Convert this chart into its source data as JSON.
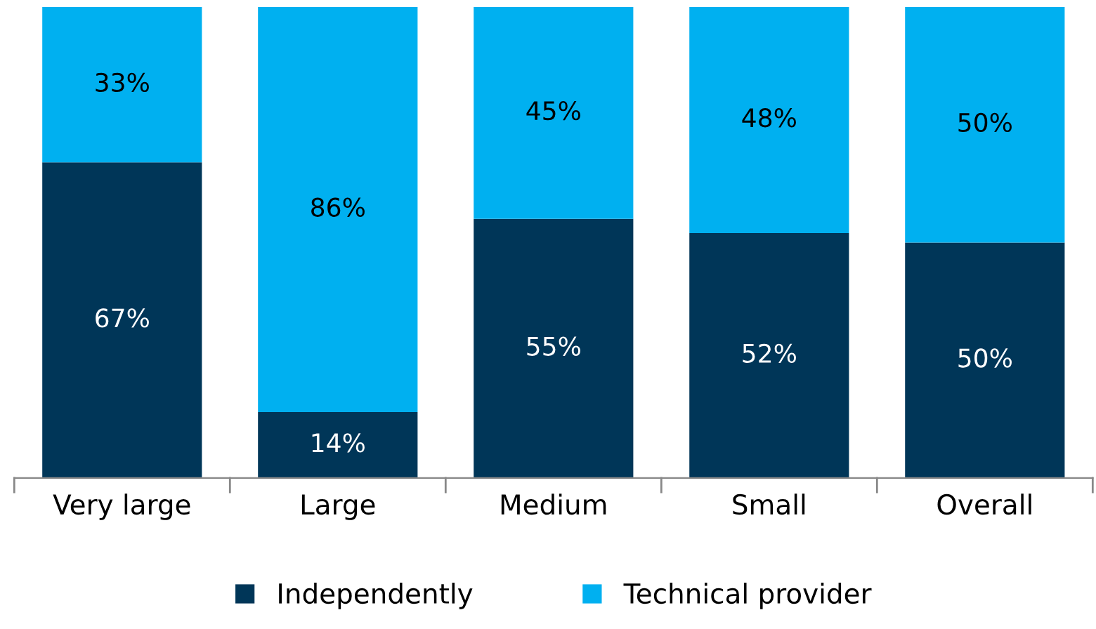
{
  "chart_data": {
    "type": "bar",
    "stacked": true,
    "categories": [
      "Very large",
      "Large",
      "Medium",
      "Small",
      "Overall"
    ],
    "series": [
      {
        "name": "Independently",
        "color": "#003658",
        "values": [
          67,
          14,
          55,
          52,
          50
        ],
        "value_labels": [
          "67%",
          "14%",
          "55%",
          "52%",
          "50%"
        ]
      },
      {
        "name": "Technical provider",
        "color": "#00b0f0",
        "values": [
          33,
          86,
          45,
          48,
          50
        ],
        "value_labels": [
          "33%",
          "86%",
          "45%",
          "48%",
          "50%"
        ]
      }
    ],
    "ylim": [
      0,
      100
    ],
    "tick_labels": "x",
    "grid": false,
    "legend": "bottom"
  }
}
